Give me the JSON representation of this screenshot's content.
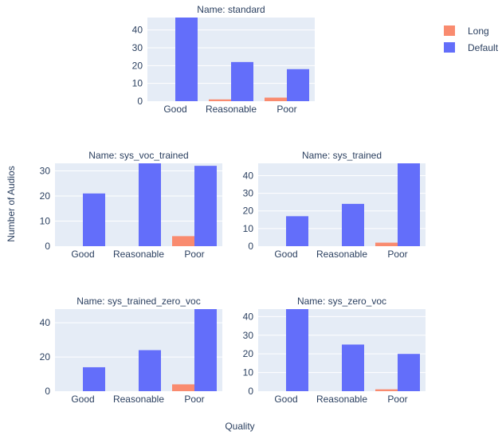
{
  "legend": {
    "placement": "top-right",
    "items": [
      {
        "name": "Long",
        "color": "#f98b6f"
      },
      {
        "name": "Default",
        "color": "#636efa"
      }
    ]
  },
  "axis_titles": {
    "x": "Quality",
    "y": "Number of Audios"
  },
  "chart_data": [
    {
      "type": "bar",
      "title": "Name: standard",
      "categories": [
        "Good",
        "Reasonable",
        "Poor"
      ],
      "series": [
        {
          "name": "Long",
          "color": "#f98b6f",
          "values": [
            0,
            1,
            2
          ]
        },
        {
          "name": "Default",
          "color": "#636efa",
          "values": [
            47,
            22,
            18
          ]
        }
      ],
      "ylim": [
        0,
        47
      ],
      "yticks": [
        0,
        10,
        20,
        30,
        40
      ],
      "grid": true
    },
    {
      "type": "bar",
      "title": "Name: sys_voc_trained",
      "categories": [
        "Good",
        "Reasonable",
        "Poor"
      ],
      "series": [
        {
          "name": "Long",
          "color": "#f98b6f",
          "values": [
            0,
            0,
            4
          ]
        },
        {
          "name": "Default",
          "color": "#636efa",
          "values": [
            21,
            33,
            32
          ]
        }
      ],
      "ylim": [
        0,
        33
      ],
      "yticks": [
        0,
        10,
        20,
        30
      ],
      "grid": true
    },
    {
      "type": "bar",
      "title": "Name: sys_trained",
      "categories": [
        "Good",
        "Reasonable",
        "Poor"
      ],
      "series": [
        {
          "name": "Long",
          "color": "#f98b6f",
          "values": [
            0,
            0,
            2
          ]
        },
        {
          "name": "Default",
          "color": "#636efa",
          "values": [
            17,
            24,
            47
          ]
        }
      ],
      "ylim": [
        0,
        47
      ],
      "yticks": [
        0,
        10,
        20,
        30,
        40
      ],
      "grid": true
    },
    {
      "type": "bar",
      "title": "Name: sys_trained_zero_voc",
      "categories": [
        "Good",
        "Reasonable",
        "Poor"
      ],
      "series": [
        {
          "name": "Long",
          "color": "#f98b6f",
          "values": [
            0,
            0,
            4
          ]
        },
        {
          "name": "Default",
          "color": "#636efa",
          "values": [
            14,
            24,
            48
          ]
        }
      ],
      "ylim": [
        0,
        48
      ],
      "yticks": [
        0,
        20,
        40
      ],
      "grid": true
    },
    {
      "type": "bar",
      "title": "Name: sys_zero_voc",
      "categories": [
        "Good",
        "Reasonable",
        "Poor"
      ],
      "series": [
        {
          "name": "Long",
          "color": "#f98b6f",
          "values": [
            0,
            0,
            1
          ]
        },
        {
          "name": "Default",
          "color": "#636efa",
          "values": [
            44,
            25,
            20
          ]
        }
      ],
      "ylim": [
        0,
        44
      ],
      "yticks": [
        0,
        10,
        20,
        30,
        40
      ],
      "grid": true
    }
  ]
}
